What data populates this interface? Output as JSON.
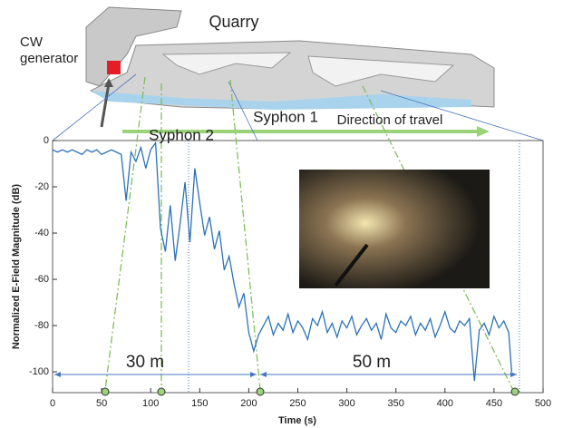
{
  "chart_data": {
    "type": "line",
    "x_label": "Time (s)",
    "y_label": "Normalized E-Field Magnitude (dB)",
    "xlim": [
      0,
      500
    ],
    "xticks": [
      0,
      50,
      100,
      150,
      200,
      250,
      300,
      350,
      400,
      450,
      500
    ],
    "ylim": [
      -109,
      0
    ],
    "yticks": [
      0,
      -20,
      -40,
      -60,
      -80,
      -100
    ],
    "x": [
      0,
      5,
      10,
      15,
      20,
      25,
      30,
      35,
      40,
      45,
      50,
      55,
      60,
      65,
      70,
      75,
      80,
      85,
      90,
      95,
      100,
      105,
      110,
      115,
      120,
      125,
      130,
      135,
      140,
      145,
      150,
      155,
      160,
      165,
      170,
      175,
      180,
      185,
      190,
      195,
      200,
      205,
      210,
      215,
      220,
      225,
      230,
      235,
      240,
      245,
      250,
      255,
      260,
      265,
      270,
      275,
      280,
      285,
      290,
      295,
      300,
      305,
      310,
      315,
      320,
      325,
      330,
      335,
      340,
      345,
      350,
      355,
      360,
      365,
      370,
      375,
      380,
      385,
      390,
      395,
      400,
      405,
      410,
      415,
      420,
      425,
      430,
      435,
      440,
      445,
      450,
      455,
      460,
      465,
      468
    ],
    "series": [
      {
        "color": "#2a72b8",
        "values": [
          -4,
          -5,
          -4,
          -5,
          -4,
          -5,
          -6,
          -4,
          -5,
          -4,
          -6,
          -5,
          -4,
          -5,
          -6,
          -26,
          -5,
          -9,
          -3,
          -12,
          -4,
          -1,
          -38,
          -48,
          -28,
          -52,
          -36,
          -18,
          -44,
          -12,
          -27,
          -41,
          -33,
          -47,
          -39,
          -56,
          -50,
          -62,
          -72,
          -66,
          -83,
          -91,
          -84,
          -80,
          -76,
          -84,
          -79,
          -82,
          -75,
          -83,
          -78,
          -81,
          -86,
          -77,
          -80,
          -74,
          -83,
          -79,
          -85,
          -78,
          -81,
          -76,
          -84,
          -80,
          -77,
          -82,
          -79,
          -86,
          -75,
          -81,
          -83,
          -78,
          -80,
          -76,
          -84,
          -79,
          -82,
          -77,
          -85,
          -80,
          -74,
          -81,
          -83,
          -78,
          -80,
          -77,
          -104,
          -82,
          -79,
          -84,
          -76,
          -81,
          -78,
          -83,
          -100
        ]
      }
    ],
    "annotations": {
      "quarry": "Quarry",
      "cw_generator": "CW generator",
      "syphon2": "Syphon 2",
      "syphon1": "Syphon 1",
      "direction": "Direction of travel",
      "dist1": "30 m",
      "dist2": "50 m"
    }
  }
}
